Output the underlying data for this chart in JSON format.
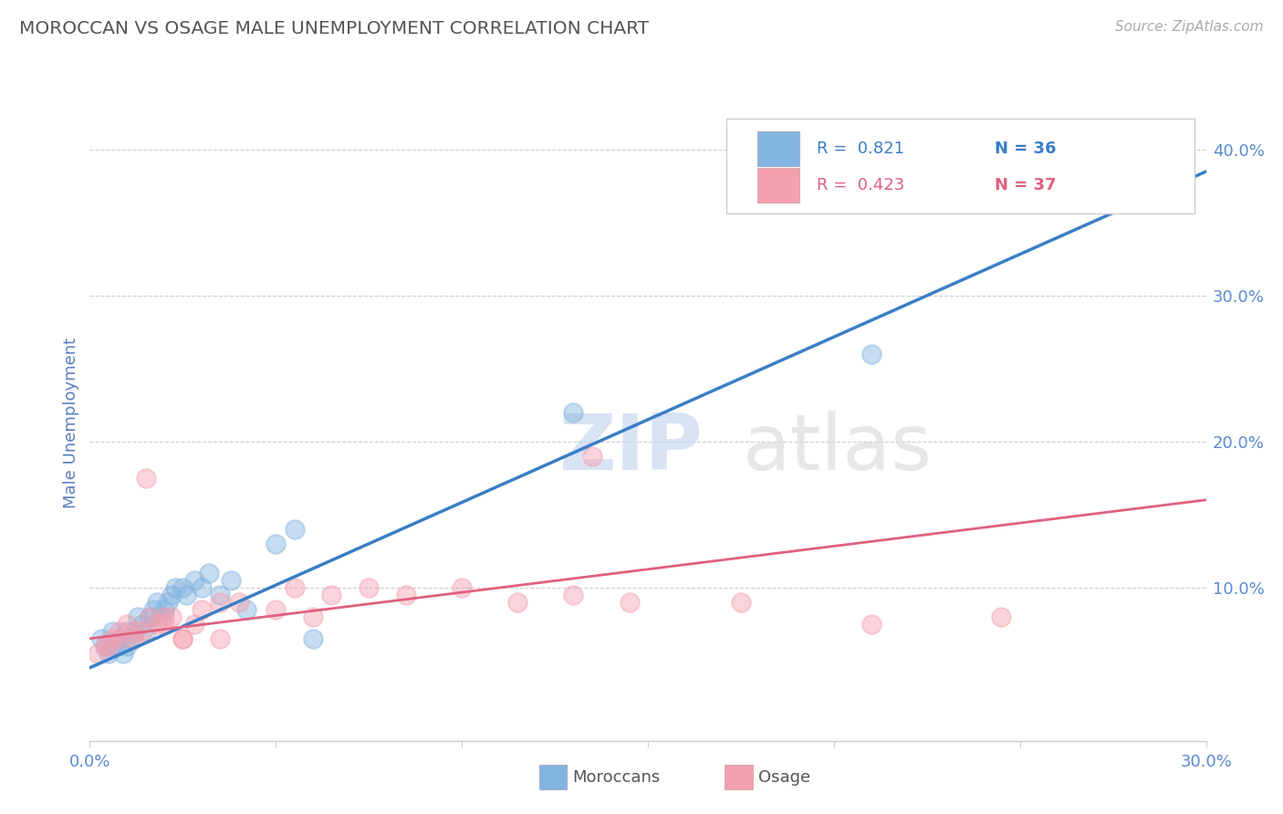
{
  "title": "MOROCCAN VS OSAGE MALE UNEMPLOYMENT CORRELATION CHART",
  "source_text": "Source: ZipAtlas.com",
  "ylabel": "Male Unemployment",
  "xlim": [
    0.0,
    0.3
  ],
  "ylim": [
    -0.005,
    0.43
  ],
  "xticks": [
    0.0,
    0.05,
    0.1,
    0.15,
    0.2,
    0.25,
    0.3
  ],
  "xticklabels": [
    "0.0%",
    "",
    "",
    "",
    "",
    "",
    "30.0%"
  ],
  "ytick_positions": [
    0.0,
    0.1,
    0.2,
    0.3,
    0.4
  ],
  "ytick_labels_right": [
    "",
    "10.0%",
    "20.0%",
    "30.0%",
    "40.0%"
  ],
  "moroccan_color": "#82b4e0",
  "osage_color": "#f4a0b0",
  "moroccan_line_color": "#3a7ec6",
  "osage_line_color": "#e06080",
  "legend_r1": "R =  0.821",
  "legend_n1": "N = 36",
  "legend_r2": "R =  0.423",
  "legend_n2": "N = 37",
  "watermark_zip": "ZIP",
  "watermark_atlas": "atlas",
  "moroccan_scatter_x": [
    0.003,
    0.004,
    0.005,
    0.006,
    0.007,
    0.008,
    0.009,
    0.01,
    0.01,
    0.011,
    0.012,
    0.013,
    0.014,
    0.015,
    0.016,
    0.017,
    0.018,
    0.019,
    0.02,
    0.021,
    0.022,
    0.023,
    0.025,
    0.026,
    0.028,
    0.03,
    0.032,
    0.035,
    0.038,
    0.042,
    0.05,
    0.055,
    0.06,
    0.13,
    0.21,
    0.27
  ],
  "moroccan_scatter_y": [
    0.065,
    0.06,
    0.055,
    0.07,
    0.06,
    0.065,
    0.055,
    0.06,
    0.07,
    0.065,
    0.07,
    0.08,
    0.075,
    0.07,
    0.08,
    0.085,
    0.09,
    0.08,
    0.085,
    0.09,
    0.095,
    0.1,
    0.1,
    0.095,
    0.105,
    0.1,
    0.11,
    0.095,
    0.105,
    0.085,
    0.13,
    0.14,
    0.065,
    0.22,
    0.26,
    0.38
  ],
  "osage_scatter_x": [
    0.002,
    0.004,
    0.006,
    0.008,
    0.01,
    0.012,
    0.014,
    0.016,
    0.018,
    0.02,
    0.022,
    0.025,
    0.028,
    0.03,
    0.035,
    0.04,
    0.05,
    0.055,
    0.065,
    0.075,
    0.085,
    0.1,
    0.115,
    0.13,
    0.145,
    0.015,
    0.005,
    0.008,
    0.012,
    0.02,
    0.025,
    0.035,
    0.06,
    0.135,
    0.175,
    0.21,
    0.245
  ],
  "osage_scatter_y": [
    0.055,
    0.06,
    0.065,
    0.07,
    0.075,
    0.065,
    0.07,
    0.08,
    0.075,
    0.075,
    0.08,
    0.065,
    0.075,
    0.085,
    0.09,
    0.09,
    0.085,
    0.1,
    0.095,
    0.1,
    0.095,
    0.1,
    0.09,
    0.095,
    0.09,
    0.175,
    0.06,
    0.065,
    0.07,
    0.08,
    0.065,
    0.065,
    0.08,
    0.19,
    0.09,
    0.075,
    0.08
  ],
  "moroccan_line_x": [
    0.0,
    0.3
  ],
  "moroccan_line_y": [
    0.045,
    0.385
  ],
  "osage_line_x": [
    0.0,
    0.3
  ],
  "osage_line_y": [
    0.065,
    0.16
  ],
  "background_color": "#ffffff",
  "grid_color": "#cccccc",
  "title_color": "#555555",
  "axis_label_color": "#5a7fc0",
  "tick_color": "#5a8ad0"
}
